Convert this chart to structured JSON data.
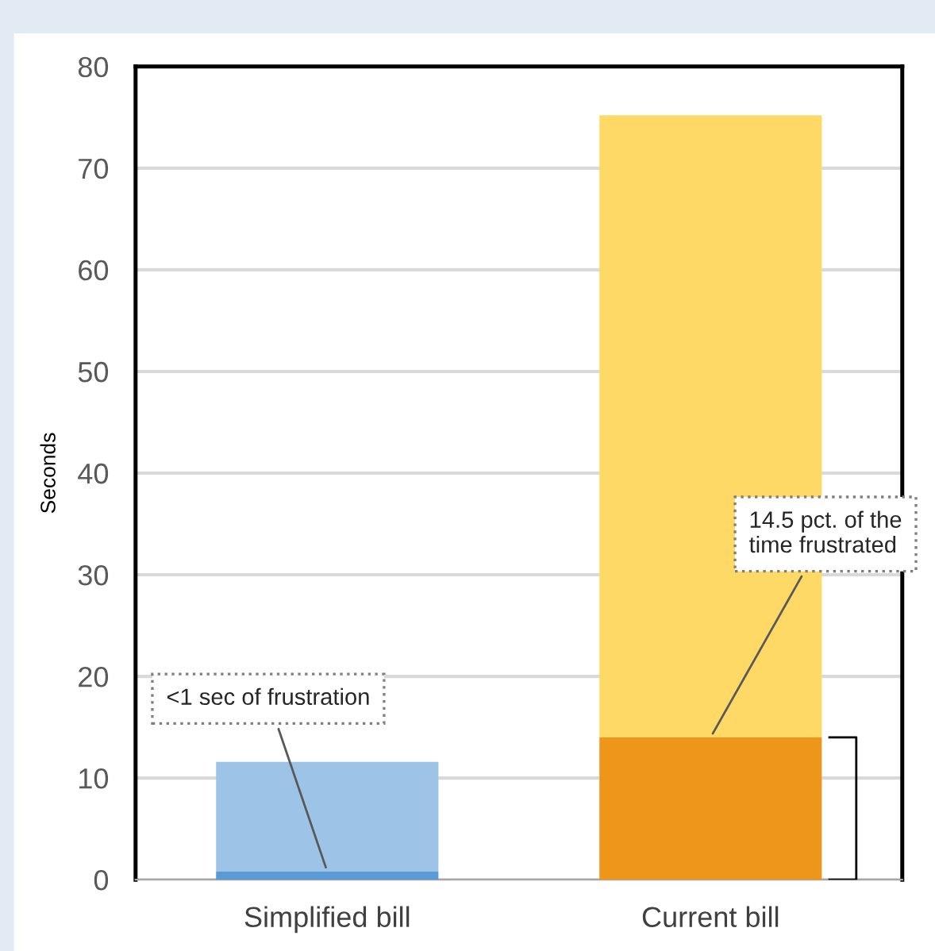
{
  "chart_data": {
    "type": "bar",
    "stacked": true,
    "ylabel": "Seconds",
    "categories": [
      "Simplified bill",
      "Current bill"
    ],
    "series": [
      {
        "colors": [
          "#5b9bd5",
          "#ed961a"
        ],
        "values": [
          0.8,
          14
        ]
      },
      {
        "colors": [
          "#9dc3e6",
          "#ffd966"
        ],
        "values": [
          10.8,
          61.2
        ]
      }
    ],
    "ylim": [
      0,
      80
    ],
    "yticks": [
      0,
      10,
      20,
      30,
      40,
      50,
      60,
      70,
      80
    ],
    "grid": "y",
    "annotations": [
      {
        "text": "<1 sec of frustration",
        "x": "Simplified bill",
        "y": 0.8
      },
      {
        "text": "14.5 pct. of the\ntime frustrated",
        "x": "Current bill",
        "y": 14
      }
    ]
  }
}
